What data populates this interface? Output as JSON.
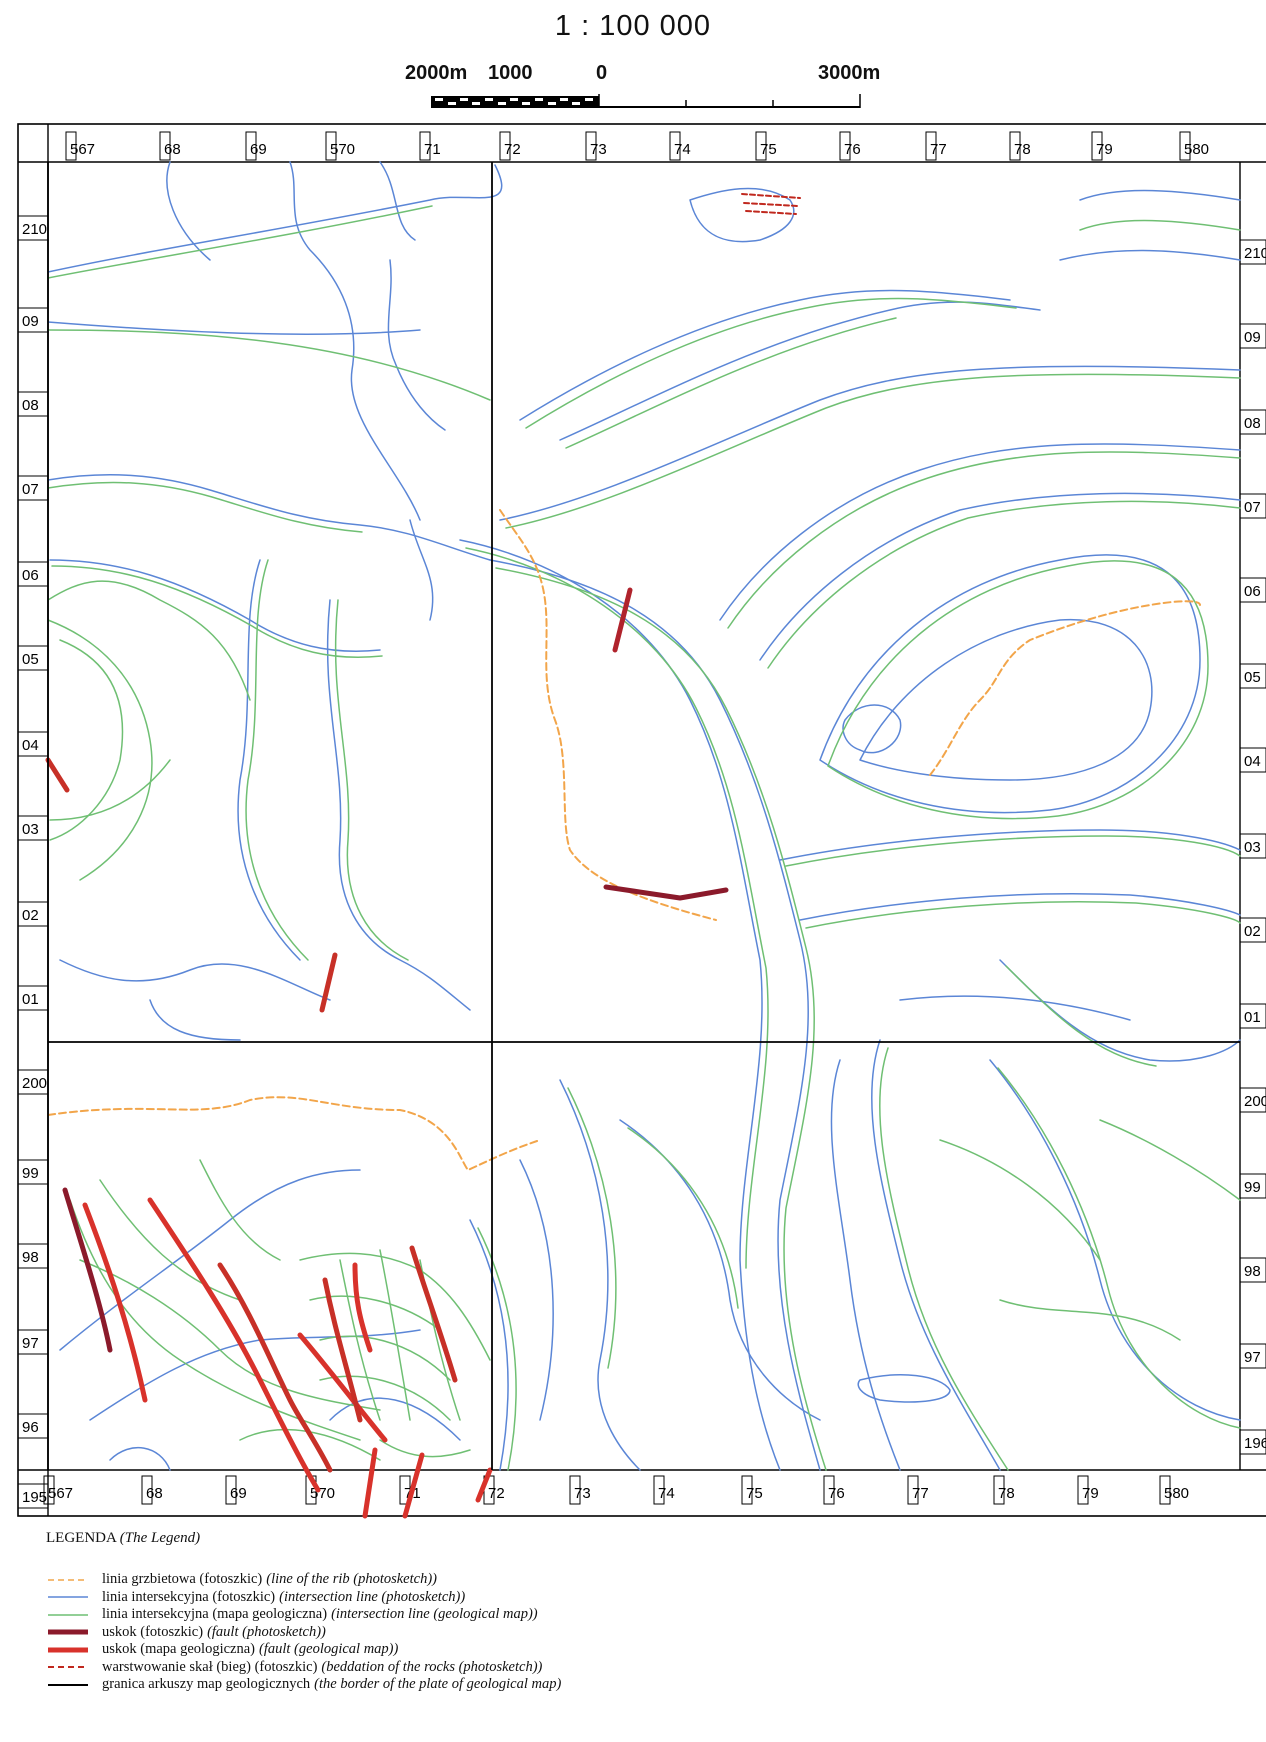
{
  "header": {
    "scale": "1 : 100 000",
    "scalebar_labels": [
      "2000m",
      "1000",
      "0",
      "3000m"
    ]
  },
  "grid": {
    "top_labels": [
      "567",
      "68",
      "69",
      "570",
      "71",
      "72",
      "73",
      "74",
      "75",
      "76",
      "77",
      "78",
      "79",
      "580"
    ],
    "bottom_labels": [
      "567",
      "68",
      "69",
      "570",
      "71",
      "72",
      "73",
      "74",
      "75",
      "76",
      "77",
      "78",
      "79",
      "580"
    ],
    "left_labels": [
      "210",
      "09",
      "08",
      "07",
      "06",
      "05",
      "04",
      "03",
      "02",
      "01",
      "200",
      "99",
      "98",
      "97",
      "96",
      "195"
    ],
    "right_labels": [
      "210",
      "09",
      "08",
      "07",
      "06",
      "05",
      "04",
      "03",
      "02",
      "01",
      "200",
      "99",
      "98",
      "97",
      "196"
    ]
  },
  "legend": {
    "title": "LEGENDA",
    "title_en": "(The Legend)",
    "items": [
      {
        "pl": "linia grzbietowa (fotoszkic)",
        "en": "(line of the rib (photosketch))",
        "symbol": "rib-dashed-line",
        "color": "#f2a54a"
      },
      {
        "pl": "linia intersekcyjna (fotoszkic)",
        "en": "(intersection line (photosketch))",
        "symbol": "intersection-line-photo",
        "color": "#5b86d6"
      },
      {
        "pl": "linia intersekcyjna (mapa geologiczna)",
        "en": "(intersection line (geological map))",
        "symbol": "intersection-line-geo",
        "color": "#6fbf73"
      },
      {
        "pl": "uskok (fotoszkic)",
        "en": "(fault (photosketch))",
        "symbol": "fault-photo",
        "color": "#8b1a2b"
      },
      {
        "pl": "uskok (mapa geologiczna)",
        "en": "(fault (geological map))",
        "symbol": "fault-geo",
        "color": "#d8322b"
      },
      {
        "pl": "warstwowanie skał (bieg) (fotoszkic)",
        "en": "(beddation of the rocks (photosketch))",
        "symbol": "bedding-dashed",
        "color": "#c0281e"
      },
      {
        "pl": "granica arkuszy map geologicznych",
        "en": "(the border of the plate of geological map)",
        "symbol": "sheet-border",
        "color": "#000000"
      }
    ]
  }
}
